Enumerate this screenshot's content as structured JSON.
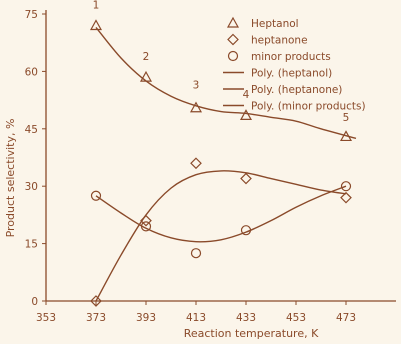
{
  "colors": {
    "background": "#fbf5ea",
    "axis": "#8a4a2a",
    "series": "#8a4a2a",
    "text": "#8a4a2a"
  },
  "chart_data": {
    "type": "scatter",
    "xlabel": "Reaction temperature, K",
    "ylabel": "Product selectivity, %",
    "xlim": [
      353,
      493
    ],
    "ylim": [
      0,
      75
    ],
    "x_ticks": [
      "353",
      "373",
      "393",
      "413",
      "433",
      "453",
      "473"
    ],
    "y_ticks": [
      "0",
      "15",
      "30",
      "45",
      "60",
      "75"
    ],
    "legend_position": "top-right",
    "grid": false,
    "series": [
      {
        "name": "Heptanol",
        "marker": "triangle",
        "points": [
          [
            373,
            72
          ],
          [
            393,
            58.5
          ],
          [
            413,
            50.5
          ],
          [
            433,
            48.5
          ],
          [
            473,
            43
          ]
        ]
      },
      {
        "name": "heptanone",
        "marker": "diamond",
        "points": [
          [
            373,
            0
          ],
          [
            393,
            21
          ],
          [
            413,
            36
          ],
          [
            433,
            32
          ],
          [
            473,
            27
          ]
        ]
      },
      {
        "name": "minor products",
        "marker": "circle",
        "points": [
          [
            373,
            27.5
          ],
          [
            393,
            19.5
          ],
          [
            413,
            12.5
          ],
          [
            433,
            18.5
          ],
          [
            473,
            30
          ]
        ]
      }
    ],
    "trendlines": [
      {
        "name": "Poly. (heptanol)",
        "points": [
          [
            373,
            71.5
          ],
          [
            383,
            63.5
          ],
          [
            393,
            57.5
          ],
          [
            403,
            53.5
          ],
          [
            413,
            51
          ],
          [
            423,
            49.5
          ],
          [
            433,
            49
          ],
          [
            443,
            48
          ],
          [
            453,
            47
          ],
          [
            463,
            45
          ],
          [
            477,
            42.5
          ]
        ]
      },
      {
        "name": "Poly. (heptanone)",
        "points": [
          [
            373,
            0
          ],
          [
            383,
            12
          ],
          [
            393,
            22.5
          ],
          [
            403,
            29.5
          ],
          [
            413,
            33
          ],
          [
            423,
            34
          ],
          [
            433,
            33.5
          ],
          [
            443,
            32
          ],
          [
            453,
            30.5
          ],
          [
            463,
            29
          ],
          [
            473,
            28
          ]
        ]
      },
      {
        "name": "Poly. (minor products)",
        "points": [
          [
            373,
            27.5
          ],
          [
            383,
            23
          ],
          [
            393,
            19
          ],
          [
            403,
            16.5
          ],
          [
            413,
            15.5
          ],
          [
            423,
            16
          ],
          [
            433,
            18
          ],
          [
            443,
            21
          ],
          [
            453,
            24.5
          ],
          [
            463,
            27.5
          ],
          [
            473,
            30
          ]
        ]
      }
    ],
    "annotations": [
      {
        "text": "1",
        "x": 373,
        "y": 76.5
      },
      {
        "text": "2",
        "x": 393,
        "y": 63
      },
      {
        "text": "3",
        "x": 413,
        "y": 55.5
      },
      {
        "text": "4",
        "x": 433,
        "y": 53
      },
      {
        "text": "5",
        "x": 473,
        "y": 47
      }
    ]
  }
}
